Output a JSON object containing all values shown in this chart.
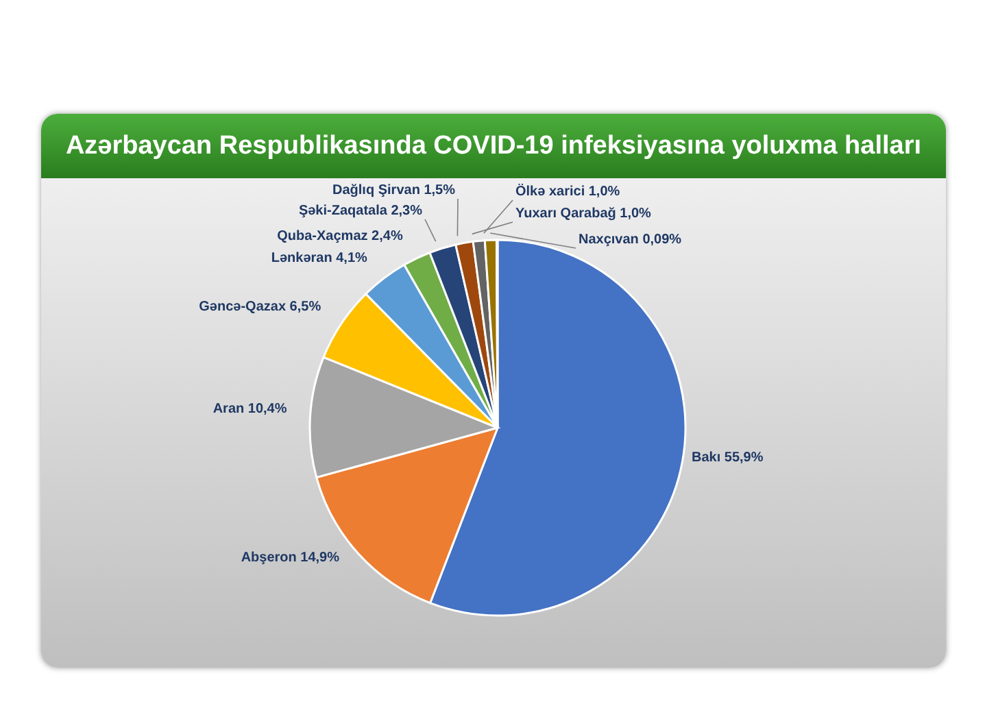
{
  "chart_data": {
    "type": "pie",
    "title": "Azərbaycan Respublikasında COVID-19 infeksiyasına yoluxma halları",
    "categories": [
      "Bakı",
      "Abşeron",
      "Aran",
      "Gəncə-Qazax",
      "Lənkəran",
      "Quba-Xaçmaz",
      "Şəki-Zaqatala",
      "Dağlıq Şirvan",
      "Yuxarı Qarabağ",
      "Ölkə xarici",
      "Naxçıvan"
    ],
    "values": [
      55.9,
      14.9,
      10.4,
      6.5,
      4.1,
      2.4,
      2.3,
      1.5,
      1.0,
      1.0,
      0.09
    ],
    "value_labels": [
      "55,9%",
      "14,9%",
      "10,4%",
      "6,5%",
      "4,1%",
      "2,4%",
      "2,3%",
      "1,5%",
      "1,0%",
      "1,0%",
      "0,09%"
    ],
    "colors": [
      "#4472c4",
      "#ed7d31",
      "#a5a5a5",
      "#ffc000",
      "#5b9bd5",
      "#70ad47",
      "#264478",
      "#9e480e",
      "#636363",
      "#997300",
      "#f1e6c0"
    ],
    "legend": false
  }
}
